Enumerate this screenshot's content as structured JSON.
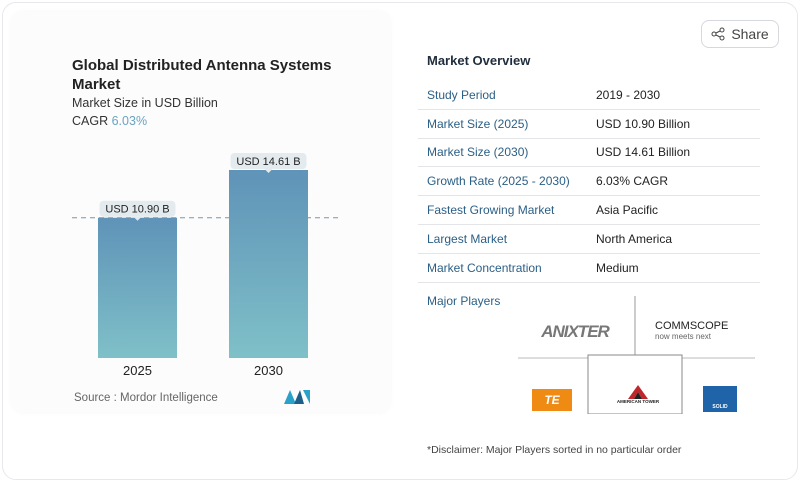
{
  "header": {
    "share_label": "Share",
    "share_icon": "share-icon"
  },
  "chart_data": {
    "type": "bar",
    "title": "Global Distributed Antenna Systems Market",
    "subtitle": "Market Size in USD Billion",
    "cagr_label": "CAGR",
    "cagr_value": "6.03%",
    "categories": [
      "2025",
      "2030"
    ],
    "values": [
      10.9,
      14.61
    ],
    "data_labels": [
      "USD 10.90 B",
      "USD 14.61 B"
    ],
    "ylim": [
      0,
      14.61
    ],
    "grid": false,
    "reference_line": 10.9,
    "bar_gradient": [
      "#5f93b8",
      "#7fc0c8"
    ],
    "source": "Source :  Mordor Intelligence"
  },
  "overview": {
    "title": "Market Overview",
    "rows": [
      {
        "label": "Study Period",
        "value": "2019 - 2030"
      },
      {
        "label": "Market Size (2025)",
        "value": "USD 10.90 Billion"
      },
      {
        "label": "Market Size (2030)",
        "value": "USD 14.61 Billion"
      },
      {
        "label": "Growth Rate (2025 - 2030)",
        "value": "6.03% CAGR"
      },
      {
        "label": "Fastest Growing Market",
        "value": "Asia Pacific"
      },
      {
        "label": "Largest Market",
        "value": "North America"
      },
      {
        "label": "Market Concentration",
        "value": "Medium"
      }
    ],
    "major_players_label": "Major Players",
    "players": [
      "ANIXTER",
      "COMMSCOPE",
      "TE",
      "AMERICAN TOWER",
      "SOLID"
    ],
    "commscope_tagline": "now meets next",
    "disclaimer": "*Disclaimer: Major Players sorted in no particular order"
  }
}
